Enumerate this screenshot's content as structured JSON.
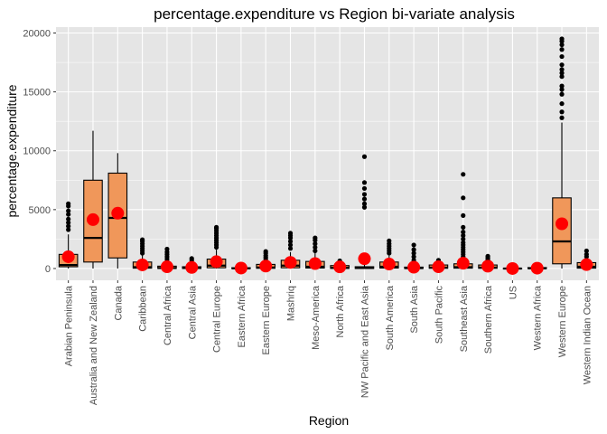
{
  "chart_data": {
    "type": "boxplot",
    "title": "percentage.expenditure vs Region bi-variate analysis",
    "xlabel": "Region",
    "ylabel": "percentage.expenditure",
    "ylim": [
      -1000,
      20500
    ],
    "yticks": [
      0,
      5000,
      10000,
      15000,
      20000
    ],
    "grid": true,
    "colors": {
      "panel": "#e5e5e5",
      "grid_major": "#ffffff",
      "box_fill": "#f0975a",
      "box_line": "#000000",
      "mean_point": "#ff0000",
      "outlier": "#000000"
    },
    "categories": [
      {
        "name": "Arabian Peninsula",
        "q1": 150,
        "median": 300,
        "q3": 1200,
        "whisker_low": 0,
        "whisker_high": 2900,
        "mean": 1000,
        "outliers": [
          3300,
          3600,
          3900,
          4200,
          4600,
          4900,
          5300,
          5500
        ]
      },
      {
        "name": "Australia and New Zealand",
        "q1": 550,
        "median": 2600,
        "q3": 7500,
        "whisker_low": 0,
        "whisker_high": 11700,
        "mean": 4150,
        "outliers": []
      },
      {
        "name": "Canada",
        "q1": 900,
        "median": 4300,
        "q3": 8100,
        "whisker_low": 0,
        "whisker_high": 9800,
        "mean": 4700,
        "outliers": []
      },
      {
        "name": "Caribbean",
        "q1": 30,
        "median": 120,
        "q3": 550,
        "whisker_low": 0,
        "whisker_high": 1150,
        "mean": 310,
        "outliers": [
          1300,
          1500,
          1700,
          1900,
          2100,
          2300,
          2450
        ]
      },
      {
        "name": "Central Africa",
        "q1": 10,
        "median": 40,
        "q3": 200,
        "whisker_low": 0,
        "whisker_high": 450,
        "mean": 150,
        "outliers": [
          600,
          800,
          1000,
          1200,
          1400,
          1650
        ]
      },
      {
        "name": "Central Asia",
        "q1": 10,
        "median": 40,
        "q3": 150,
        "whisker_low": 0,
        "whisker_high": 350,
        "mean": 90,
        "outliers": [
          500,
          700,
          850
        ]
      },
      {
        "name": "Central Europe",
        "q1": 60,
        "median": 250,
        "q3": 800,
        "whisker_low": 0,
        "whisker_high": 1600,
        "mean": 580,
        "outliers": [
          1800,
          2000,
          2200,
          2400,
          2600,
          2800,
          3000,
          3200,
          3400,
          3500
        ]
      },
      {
        "name": "Eastern Africa",
        "q1": 5,
        "median": 20,
        "q3": 60,
        "whisker_low": 0,
        "whisker_high": 130,
        "mean": 40,
        "outliers": [
          200,
          280
        ]
      },
      {
        "name": "Eastern Europe",
        "q1": 20,
        "median": 90,
        "q3": 350,
        "whisker_low": 0,
        "whisker_high": 650,
        "mean": 210,
        "outliers": [
          800,
          950,
          1100,
          1300,
          1450
        ]
      },
      {
        "name": "Mashriq",
        "q1": 60,
        "median": 250,
        "q3": 700,
        "whisker_low": 0,
        "whisker_high": 1400,
        "mean": 520,
        "outliers": [
          1700,
          2000,
          2300,
          2600,
          2800,
          3000
        ]
      },
      {
        "name": "Meso-America",
        "q1": 40,
        "median": 150,
        "q3": 600,
        "whisker_low": 0,
        "whisker_high": 1300,
        "mean": 420,
        "outliers": [
          1500,
          1800,
          2100,
          2400,
          2600
        ]
      },
      {
        "name": "North Africa",
        "q1": 10,
        "median": 60,
        "q3": 250,
        "whisker_low": 0,
        "whisker_high": 450,
        "mean": 140,
        "outliers": [
          550,
          650
        ]
      },
      {
        "name": "NW Pacific and East Asia",
        "q1": 5,
        "median": 50,
        "q3": 150,
        "whisker_low": 0,
        "whisker_high": 350,
        "mean": 830,
        "outliers": [
          5200,
          5500,
          5900,
          6300,
          6800,
          7300,
          9500
        ]
      },
      {
        "name": "South America",
        "q1": 40,
        "median": 150,
        "q3": 550,
        "whisker_low": 0,
        "whisker_high": 1100,
        "mean": 380,
        "outliers": [
          1300,
          1500,
          1700,
          1900,
          2100,
          2350
        ]
      },
      {
        "name": "South Asia",
        "q1": 10,
        "median": 30,
        "q3": 120,
        "whisker_low": 0,
        "whisker_high": 300,
        "mean": 110,
        "outliers": [
          450,
          700,
          1000,
          1300,
          1600,
          2000
        ]
      },
      {
        "name": "South Pacific",
        "q1": 20,
        "median": 80,
        "q3": 300,
        "whisker_low": 0,
        "whisker_high": 550,
        "mean": 150,
        "outliers": [
          650,
          700
        ]
      },
      {
        "name": "Southeast Asia",
        "q1": 30,
        "median": 120,
        "q3": 400,
        "whisker_low": 0,
        "whisker_high": 850,
        "mean": 450,
        "outliers": [
          1000,
          1200,
          1400,
          1600,
          1800,
          2000,
          2200,
          2500,
          2800,
          3100,
          3500,
          4500,
          6000,
          8000
        ]
      },
      {
        "name": "Southern Africa",
        "q1": 20,
        "median": 80,
        "q3": 300,
        "whisker_low": 0,
        "whisker_high": 600,
        "mean": 200,
        "outliers": [
          750,
          900,
          1050
        ]
      },
      {
        "name": "US",
        "q1": 0,
        "median": 0,
        "q3": 0,
        "whisker_low": 0,
        "whisker_high": 0,
        "mean": 0,
        "outliers": []
      },
      {
        "name": "Western Africa",
        "q1": 5,
        "median": 20,
        "q3": 80,
        "whisker_low": 0,
        "whisker_high": 150,
        "mean": 30,
        "outliers": [
          220,
          280
        ]
      },
      {
        "name": "Western Europe",
        "q1": 400,
        "median": 2300,
        "q3": 6000,
        "whisker_low": 0,
        "whisker_high": 12400,
        "mean": 3800,
        "outliers": [
          12800,
          13300,
          14000,
          14800,
          15200,
          15500,
          16300,
          16600,
          16900,
          17300,
          18000,
          18600,
          19000,
          19300,
          19500
        ]
      },
      {
        "name": "Western Indian Ocean",
        "q1": 30,
        "median": 150,
        "q3": 500,
        "whisker_low": 0,
        "whisker_high": 850,
        "mean": 330,
        "outliers": [
          1000,
          1200,
          1500
        ]
      }
    ]
  }
}
